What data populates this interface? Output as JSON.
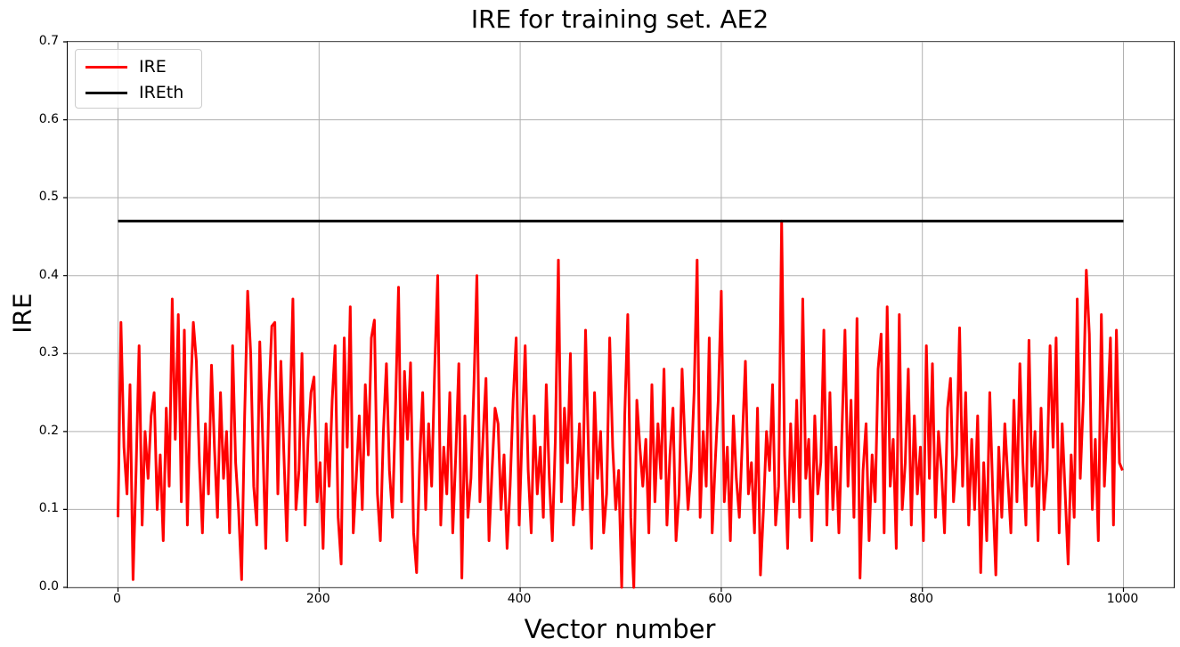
{
  "colors": {
    "background": "#ffffff",
    "grid": "#b0b0b0",
    "axis": "#000000",
    "ire_line": "#ff0000",
    "ireth_line": "#000000"
  },
  "chart_data": {
    "type": "line",
    "title": "IRE for training set. AE2",
    "xlabel": "Vector number",
    "ylabel": "IRE",
    "xlim": [
      -50,
      1050
    ],
    "ylim": [
      0,
      0.7
    ],
    "grid": true,
    "xticks": [
      {
        "v": 0,
        "label": "0"
      },
      {
        "v": 200,
        "label": "200"
      },
      {
        "v": 400,
        "label": "400"
      },
      {
        "v": 600,
        "label": "600"
      },
      {
        "v": 800,
        "label": "800"
      },
      {
        "v": 1000,
        "label": "1000"
      }
    ],
    "yticks": [
      {
        "v": 0.0,
        "label": "0.0"
      },
      {
        "v": 0.1,
        "label": "0.1"
      },
      {
        "v": 0.2,
        "label": "0.2"
      },
      {
        "v": 0.3,
        "label": "0.3"
      },
      {
        "v": 0.4,
        "label": "0.4"
      },
      {
        "v": 0.5,
        "label": "0.5"
      },
      {
        "v": 0.6,
        "label": "0.6"
      },
      {
        "v": 0.7,
        "label": "0.7"
      }
    ],
    "legend": {
      "position": "upper-left",
      "entries": [
        {
          "label": "IRE",
          "color": "#ff0000"
        },
        {
          "label": "IREth",
          "color": "#000000"
        }
      ]
    },
    "series": [
      {
        "name": "IRE",
        "color": "#ff0000",
        "line_width": 3,
        "x_start": 0,
        "x_step": 3,
        "values": [
          0.09,
          0.34,
          0.18,
          0.12,
          0.26,
          0.01,
          0.15,
          0.31,
          0.08,
          0.2,
          0.14,
          0.22,
          0.25,
          0.1,
          0.17,
          0.06,
          0.23,
          0.13,
          0.37,
          0.19,
          0.35,
          0.11,
          0.33,
          0.08,
          0.24,
          0.34,
          0.29,
          0.16,
          0.07,
          0.21,
          0.12,
          0.285,
          0.18,
          0.09,
          0.25,
          0.14,
          0.2,
          0.07,
          0.31,
          0.16,
          0.1,
          0.01,
          0.22,
          0.38,
          0.3,
          0.13,
          0.08,
          0.315,
          0.19,
          0.05,
          0.24,
          0.335,
          0.34,
          0.12,
          0.29,
          0.17,
          0.06,
          0.22,
          0.37,
          0.1,
          0.15,
          0.3,
          0.08,
          0.19,
          0.25,
          0.27,
          0.11,
          0.16,
          0.05,
          0.21,
          0.13,
          0.24,
          0.31,
          0.09,
          0.03,
          0.32,
          0.18,
          0.36,
          0.07,
          0.14,
          0.22,
          0.1,
          0.26,
          0.17,
          0.32,
          0.343,
          0.12,
          0.06,
          0.2,
          0.287,
          0.15,
          0.09,
          0.23,
          0.385,
          0.11,
          0.277,
          0.19,
          0.288,
          0.07,
          0.019,
          0.16,
          0.25,
          0.1,
          0.21,
          0.13,
          0.28,
          0.4,
          0.08,
          0.18,
          0.12,
          0.25,
          0.07,
          0.17,
          0.287,
          0.012,
          0.22,
          0.09,
          0.14,
          0.26,
          0.4,
          0.11,
          0.19,
          0.268,
          0.06,
          0.15,
          0.23,
          0.21,
          0.1,
          0.17,
          0.05,
          0.13,
          0.24,
          0.32,
          0.08,
          0.2,
          0.31,
          0.15,
          0.07,
          0.22,
          0.12,
          0.18,
          0.09,
          0.26,
          0.14,
          0.06,
          0.19,
          0.42,
          0.11,
          0.23,
          0.16,
          0.3,
          0.08,
          0.13,
          0.21,
          0.1,
          0.33,
          0.17,
          0.05,
          0.25,
          0.14,
          0.2,
          0.07,
          0.12,
          0.32,
          0.18,
          0.1,
          0.15,
          0.0,
          0.22,
          0.35,
          0.09,
          0.0,
          0.24,
          0.18,
          0.13,
          0.19,
          0.07,
          0.26,
          0.11,
          0.21,
          0.14,
          0.28,
          0.08,
          0.17,
          0.23,
          0.06,
          0.12,
          0.28,
          0.18,
          0.1,
          0.15,
          0.25,
          0.42,
          0.09,
          0.2,
          0.13,
          0.32,
          0.07,
          0.16,
          0.24,
          0.38,
          0.11,
          0.18,
          0.06,
          0.22,
          0.14,
          0.09,
          0.19,
          0.29,
          0.12,
          0.16,
          0.07,
          0.23,
          0.016,
          0.1,
          0.2,
          0.15,
          0.26,
          0.08,
          0.13,
          0.47,
          0.17,
          0.05,
          0.21,
          0.11,
          0.24,
          0.09,
          0.37,
          0.14,
          0.19,
          0.06,
          0.22,
          0.12,
          0.16,
          0.33,
          0.08,
          0.25,
          0.1,
          0.18,
          0.07,
          0.2,
          0.33,
          0.13,
          0.24,
          0.09,
          0.345,
          0.012,
          0.15,
          0.21,
          0.06,
          0.17,
          0.11,
          0.28,
          0.325,
          0.07,
          0.36,
          0.13,
          0.19,
          0.05,
          0.35,
          0.1,
          0.16,
          0.28,
          0.08,
          0.22,
          0.12,
          0.18,
          0.06,
          0.31,
          0.14,
          0.287,
          0.09,
          0.2,
          0.15,
          0.07,
          0.23,
          0.268,
          0.11,
          0.17,
          0.333,
          0.13,
          0.25,
          0.08,
          0.19,
          0.1,
          0.22,
          0.019,
          0.16,
          0.06,
          0.25,
          0.12,
          0.016,
          0.18,
          0.09,
          0.21,
          0.14,
          0.07,
          0.24,
          0.11,
          0.287,
          0.16,
          0.08,
          0.317,
          0.13,
          0.2,
          0.06,
          0.23,
          0.1,
          0.15,
          0.31,
          0.18,
          0.32,
          0.07,
          0.21,
          0.12,
          0.03,
          0.17,
          0.09,
          0.37,
          0.14,
          0.24,
          0.407,
          0.325,
          0.1,
          0.19,
          0.06,
          0.35,
          0.13,
          0.22,
          0.32,
          0.08,
          0.33,
          0.16,
          0.15
        ]
      },
      {
        "name": "IREth",
        "color": "#000000",
        "line_width": 3,
        "type": "hline",
        "y": 0.47,
        "x_range": [
          0,
          1000
        ]
      }
    ]
  }
}
